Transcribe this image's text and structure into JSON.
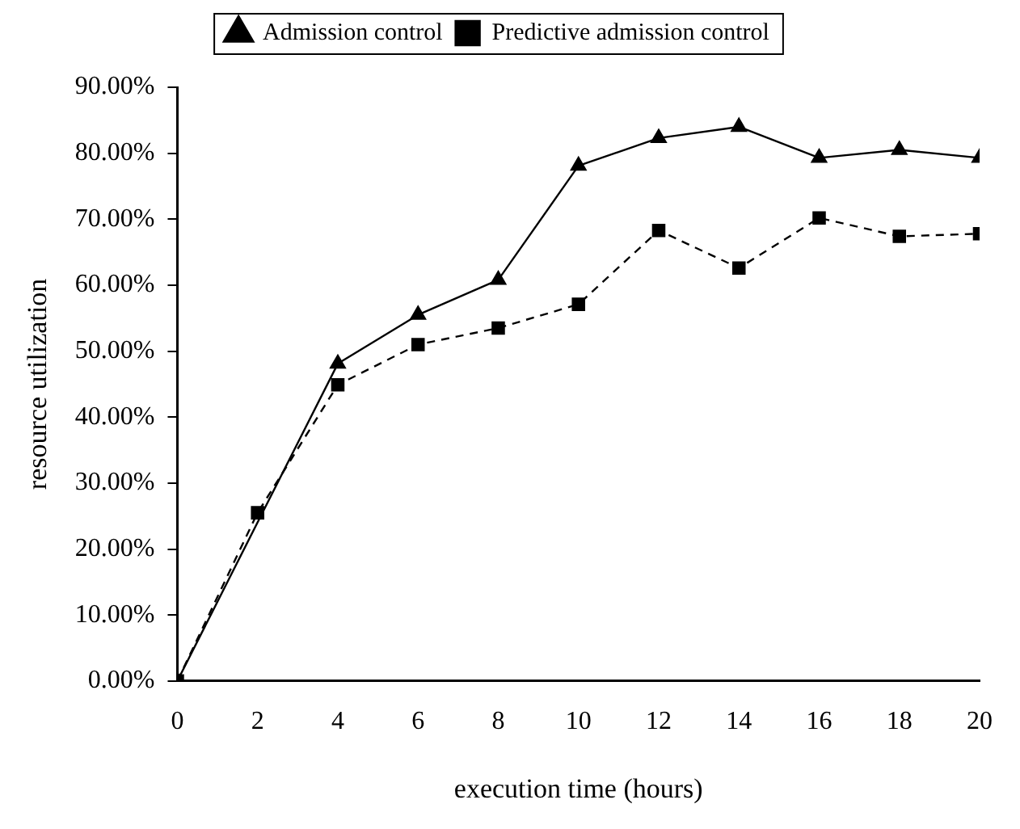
{
  "chart_data": {
    "type": "line",
    "xlabel": "execution time (hours)",
    "ylabel": "resource utilization",
    "x": [
      0,
      2,
      4,
      6,
      8,
      10,
      12,
      14,
      16,
      18,
      20
    ],
    "series": [
      {
        "name": "Admission control",
        "color": "#000000",
        "marker": "triangle",
        "line_style": "solid",
        "values": [
          0,
          null,
          48.1,
          55.5,
          60.8,
          78.1,
          82.3,
          84,
          79.3,
          80.5,
          79.3
        ]
      },
      {
        "name": "Predictive admission control",
        "color": "#000000",
        "marker": "square",
        "line_style": "dashed",
        "values": [
          0,
          25.5,
          44.9,
          51,
          53.5,
          57.1,
          68.3,
          62.6,
          70.2,
          67.4,
          67.8
        ]
      }
    ],
    "xlim": [
      0,
      20
    ],
    "xticks": [
      0,
      2,
      4,
      6,
      8,
      10,
      12,
      14,
      16,
      18,
      20
    ],
    "ylim": [
      0,
      90
    ],
    "yticks": [
      {
        "value": 0,
        "label": "0.00%"
      },
      {
        "value": 10,
        "label": "10.00%"
      },
      {
        "value": 20,
        "label": "20.00%"
      },
      {
        "value": 30,
        "label": "30.00%"
      },
      {
        "value": 40,
        "label": "40.00%"
      },
      {
        "value": 50,
        "label": "50.00%"
      },
      {
        "value": 60,
        "label": "60.00%"
      },
      {
        "value": 70,
        "label": "70.00%"
      },
      {
        "value": 80,
        "label": "80.00%"
      },
      {
        "value": 90,
        "label": "90.00%"
      }
    ],
    "grid": false,
    "legend": "top"
  }
}
